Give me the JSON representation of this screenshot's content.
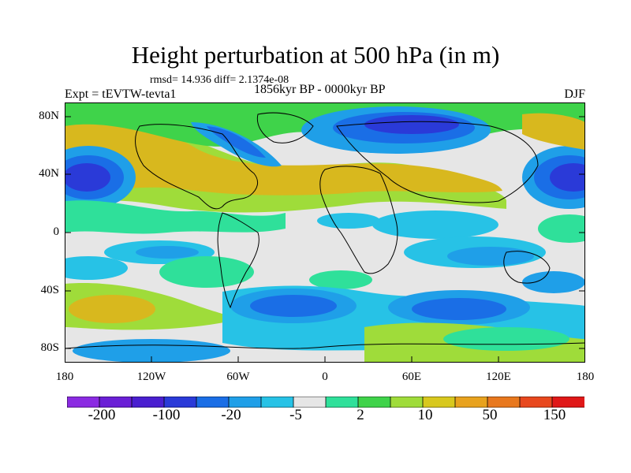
{
  "header": {
    "title": "Height perturbation at 500 hPa (in m)",
    "stats": "rmsd= 14.936 diff= 2.1374e-08",
    "experiment": "Expt = tEVTW-tevta1",
    "period": "1856kyr BP - 0000kyr BP",
    "season": "DJF"
  },
  "axes": {
    "y_ticks": [
      "80N",
      "40N",
      "0",
      "40S",
      "80S"
    ],
    "x_ticks": [
      "180",
      "120W",
      "60W",
      "0",
      "60E",
      "120E",
      "180"
    ]
  },
  "colorbar": {
    "colors": [
      "#8b2be2",
      "#6a1fd6",
      "#4a1fd0",
      "#2a3ad8",
      "#1a6ee6",
      "#1f9fe8",
      "#27c2e6",
      "#e6e6e6",
      "#2fe09a",
      "#3fd34a",
      "#9fdc3a",
      "#d8c81e",
      "#e8a21e",
      "#e8781e",
      "#e8481e",
      "#e01818"
    ],
    "labels": [
      "-200",
      "-100",
      "-20",
      "-5",
      "2",
      "10",
      "50",
      "150"
    ]
  },
  "legend_colors": {
    "strong_negative": "#1a3fd8",
    "negative": "#1a8fe6",
    "weak_negative": "#27c2e6",
    "neutral": "#e6e6e6",
    "weak_positive": "#2fe09a",
    "positive": "#9fdc3a",
    "strong_positive": "#d8b81e"
  }
}
